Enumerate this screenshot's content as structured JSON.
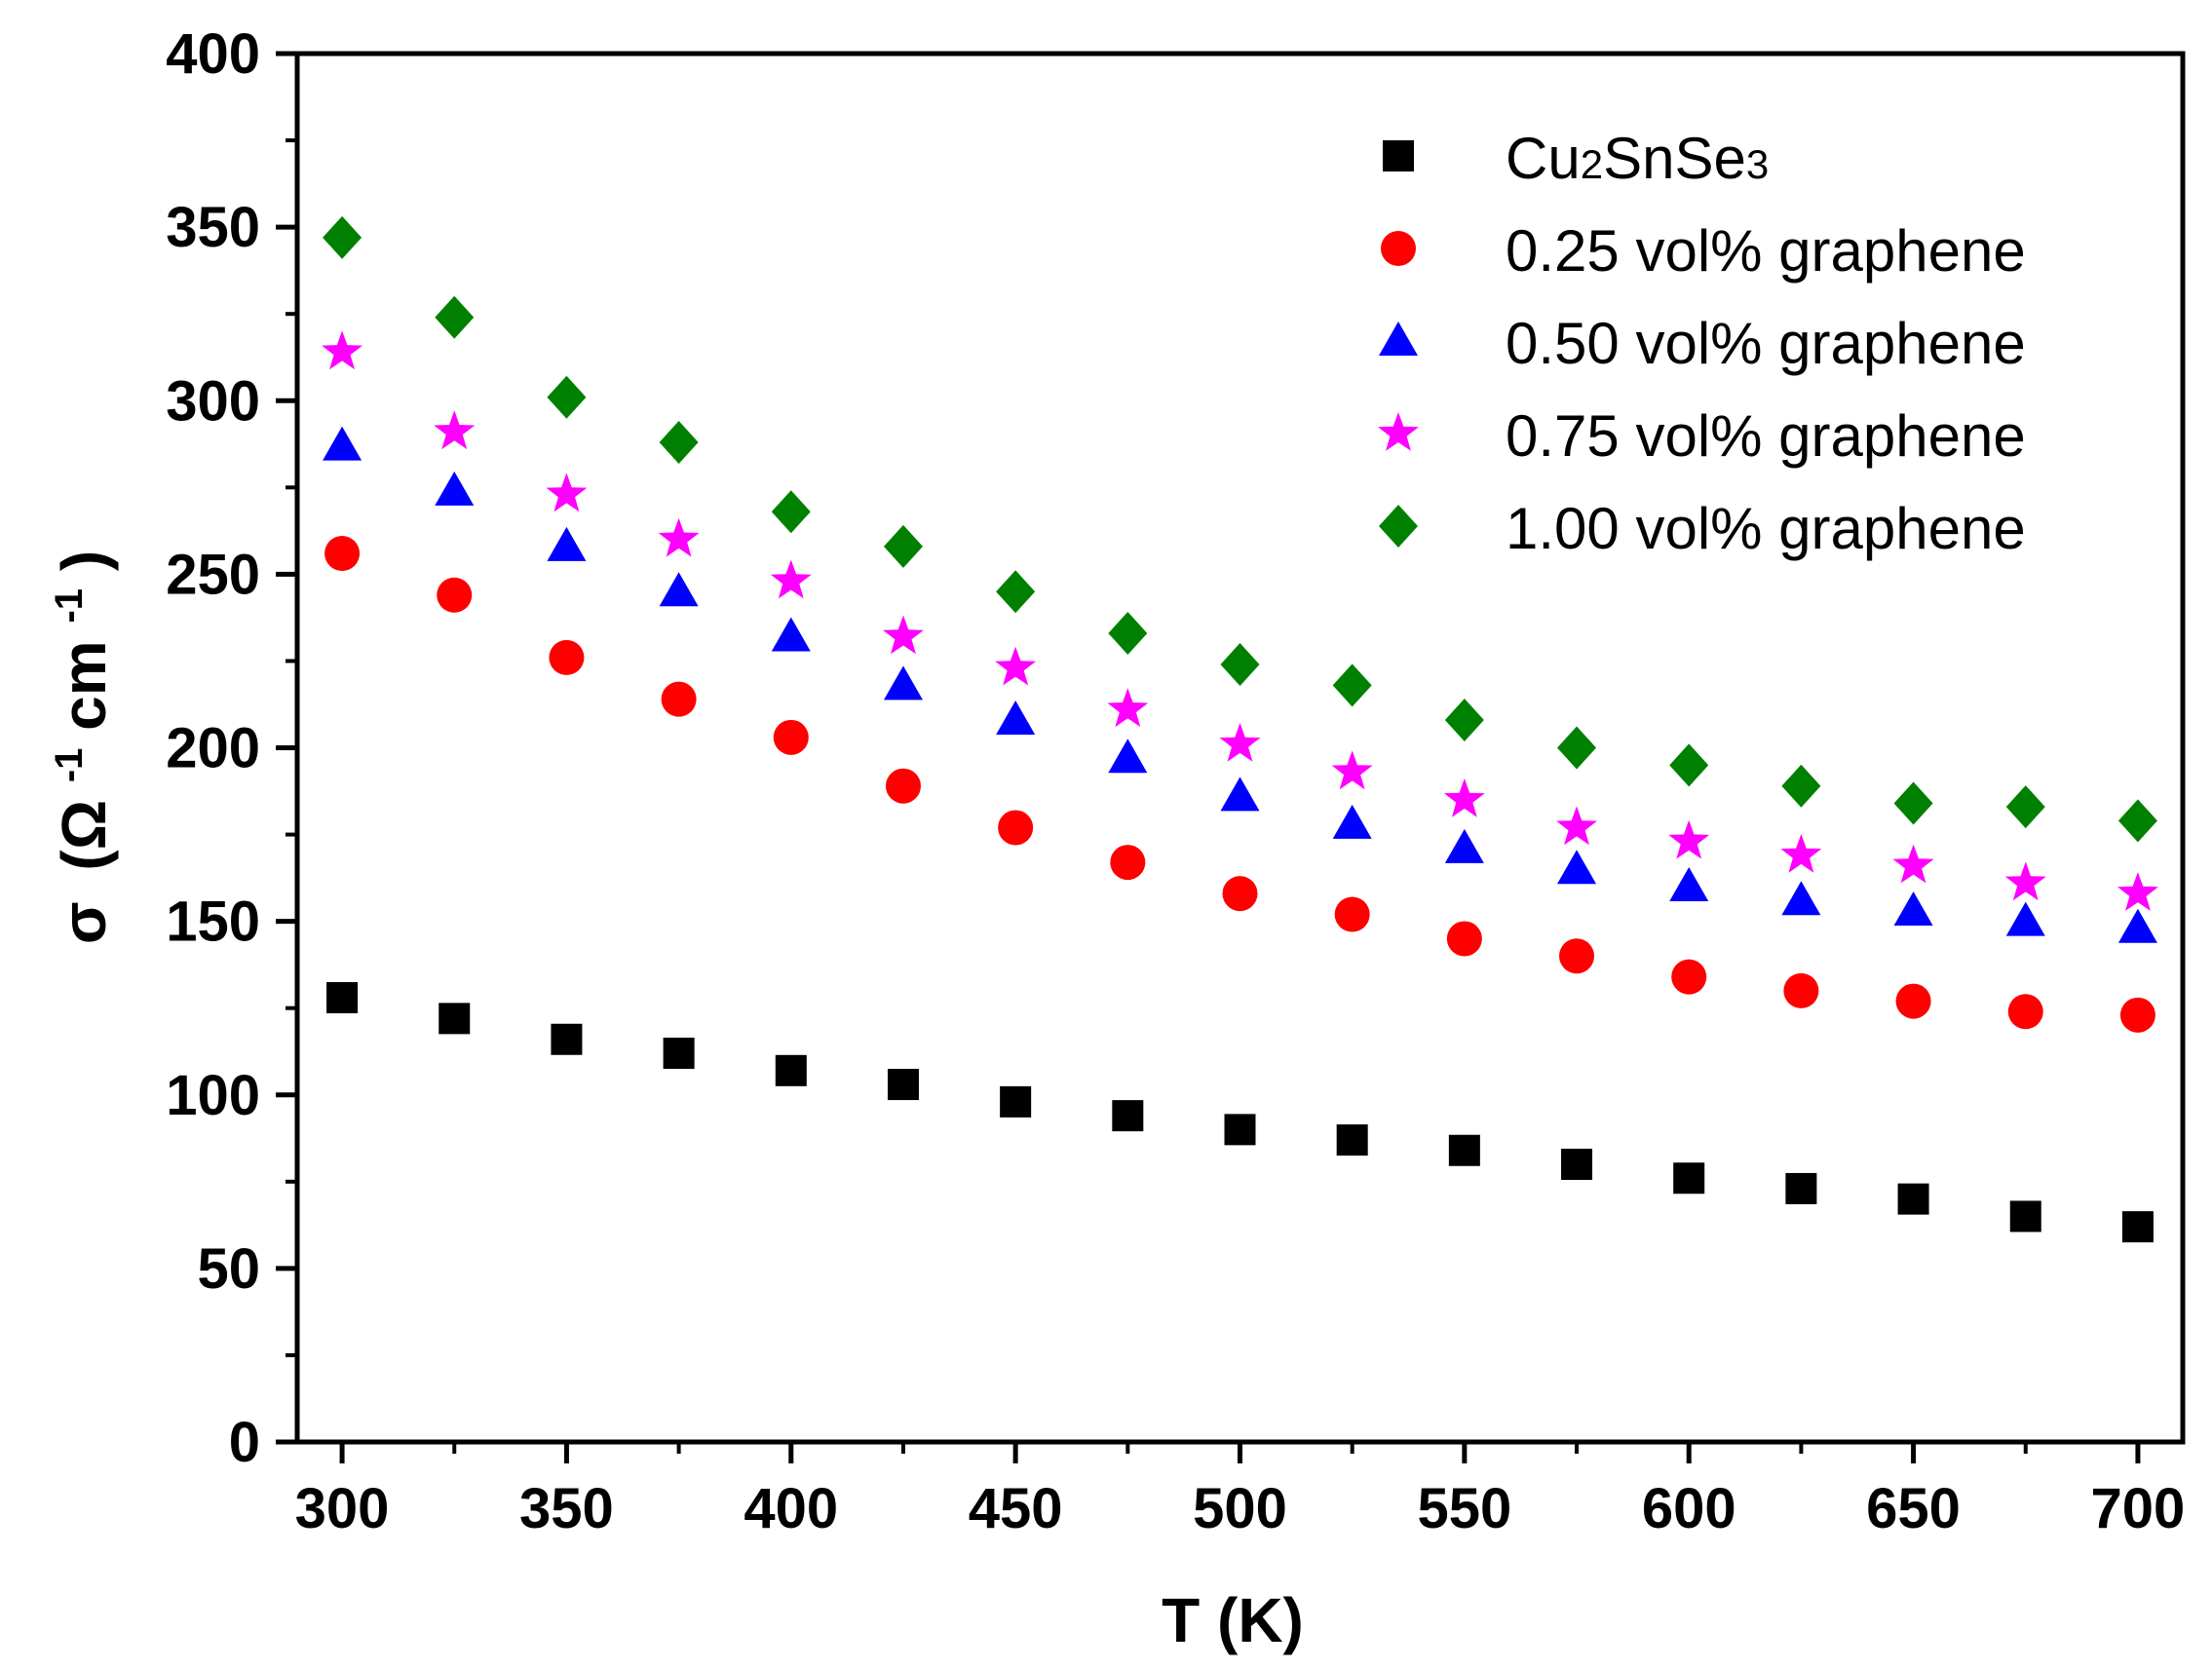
{
  "chart_data": {
    "type": "scatter",
    "title": "",
    "xlabel": "T (K)",
    "ylabel": {
      "symbol": "σ",
      "open": "(Ω",
      "sup1": "-1",
      "unit": " cm",
      "sup2": "-1",
      "close": ")"
    },
    "xlim": [
      290,
      710
    ],
    "ylim": [
      0,
      400
    ],
    "xticks": [
      300,
      350,
      400,
      450,
      500,
      550,
      600,
      650,
      700
    ],
    "yticks": [
      0,
      50,
      100,
      150,
      200,
      250,
      300,
      350,
      400
    ],
    "x": [
      300,
      325,
      350,
      375,
      400,
      425,
      450,
      475,
      500,
      525,
      550,
      575,
      600,
      625,
      650,
      675,
      700
    ],
    "legend_position": "top-right",
    "grid": false,
    "series": [
      {
        "name": "Cu2SnSe3",
        "legend_parts": {
          "a": "Cu",
          "sub1": "2",
          "b": "SnSe",
          "sub2": "3"
        },
        "marker": "square",
        "color": "#000000",
        "values": [
          128,
          122,
          116,
          112,
          107,
          103,
          98,
          94,
          90,
          87,
          84,
          80,
          76,
          73,
          70,
          65,
          62
        ]
      },
      {
        "name": "0.25 vol% graphene",
        "marker": "circle",
        "color": "#ff0000",
        "values": [
          256,
          244,
          226,
          214,
          203,
          189,
          177,
          167,
          158,
          152,
          145,
          140,
          134,
          130,
          127,
          124,
          123
        ]
      },
      {
        "name": "0.50 vol% graphene",
        "marker": "triangle",
        "color": "#0000ff",
        "values": [
          287,
          274,
          258,
          245,
          232,
          218,
          208,
          197,
          186,
          178,
          171,
          165,
          160,
          156,
          153,
          150,
          148
        ]
      },
      {
        "name": "0.75 vol% graphene",
        "marker": "star",
        "color": "#ff00ff",
        "values": [
          314,
          291,
          273,
          260,
          248,
          232,
          223,
          211,
          201,
          193,
          185,
          177,
          173,
          169,
          166,
          161,
          158
        ]
      },
      {
        "name": "1.00 vol% graphene",
        "marker": "diamond",
        "color": "#008000",
        "values": [
          347,
          324,
          301,
          288,
          268,
          258,
          245,
          233,
          224,
          218,
          208,
          200,
          195,
          189,
          184,
          183,
          179
        ]
      }
    ]
  }
}
